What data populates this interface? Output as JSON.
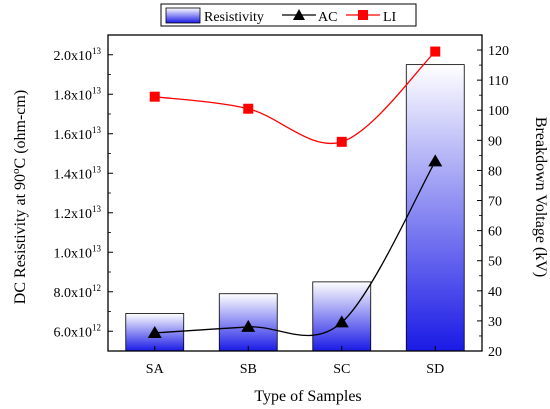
{
  "chart_data": {
    "type": "bar",
    "categories": [
      "SA",
      "SB",
      "SC",
      "SD"
    ],
    "xlabel": "Type of Samples",
    "ylabel_left_parts": [
      "DC Resistivity at 90",
      "o",
      "C (ohm-cm)"
    ],
    "ylabel_right": "Breakdown Voltage (kV)",
    "y_left": {
      "min": 5000000000000.0,
      "max": 21000000000000.0,
      "ticks": [
        {
          "value": 6000000000000.0,
          "mant": "6.0x10",
          "exp": "12"
        },
        {
          "value": 8000000000000.0,
          "mant": "8.0x10",
          "exp": "12"
        },
        {
          "value": 10000000000000.0,
          "mant": "1.0x10",
          "exp": "13"
        },
        {
          "value": 12000000000000.0,
          "mant": "1.2x10",
          "exp": "13"
        },
        {
          "value": 14000000000000.0,
          "mant": "1.4x10",
          "exp": "13"
        },
        {
          "value": 16000000000000.0,
          "mant": "1.6x10",
          "exp": "13"
        },
        {
          "value": 18000000000000.0,
          "mant": "1.8x10",
          "exp": "13"
        },
        {
          "value": 20000000000000.0,
          "mant": "2.0x10",
          "exp": "13"
        }
      ]
    },
    "y_right": {
      "min": 20,
      "max": 125,
      "ticks": [
        20,
        30,
        40,
        50,
        60,
        70,
        80,
        90,
        100,
        110,
        120
      ]
    },
    "series": [
      {
        "name": "Resistivity",
        "kind": "bar",
        "axis": "left",
        "values": [
          6900000000000.0,
          7900000000000.0,
          8500000000000.0,
          19500000000000.0
        ]
      },
      {
        "name": "AC",
        "kind": "line-triangle",
        "axis": "right",
        "values": [
          26,
          28,
          29.5,
          83
        ],
        "color": "#000000"
      },
      {
        "name": "LI",
        "kind": "line-square",
        "axis": "right",
        "values": [
          104.5,
          100.5,
          89.5,
          119.5
        ],
        "color": "#ff0000"
      }
    ],
    "legend_position": "top",
    "bar_gradient": {
      "top": "#ffffff",
      "bottom": "#1a1ae6"
    }
  }
}
